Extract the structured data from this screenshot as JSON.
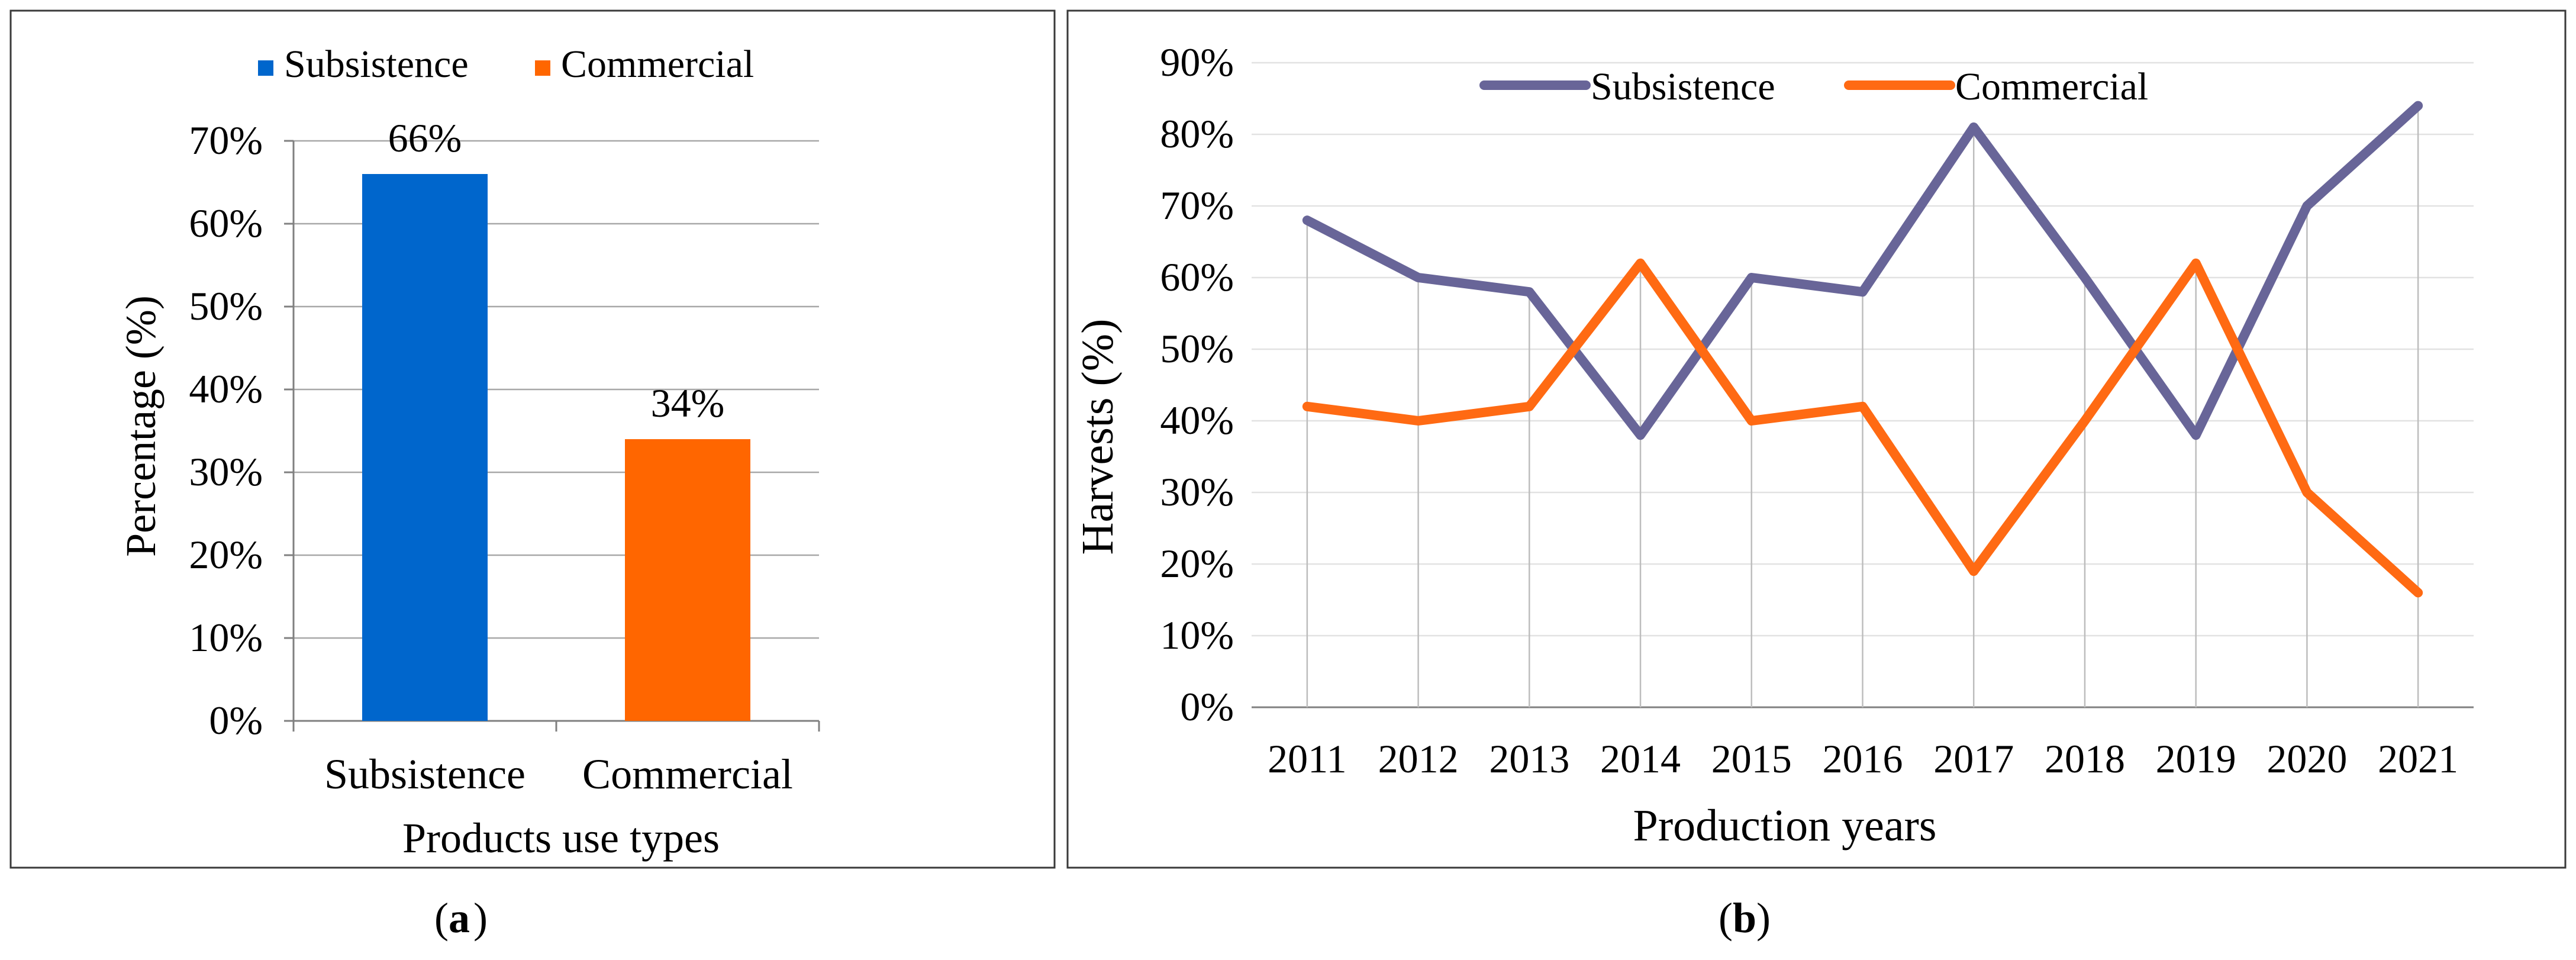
{
  "chart_data": [
    {
      "panel": "a",
      "type": "bar",
      "categories": [
        "Subsistence",
        "Commercial"
      ],
      "values": [
        66,
        34
      ],
      "data_labels": [
        "66%",
        "34%"
      ],
      "colors": [
        "#0066cc",
        "#ff6600"
      ],
      "legend": [
        "Subsistence",
        "Commercial"
      ],
      "legend_position": "top",
      "xlabel": "Products use types",
      "ylabel": "Percentage (%)",
      "ylim": [
        0,
        70
      ],
      "yticks": [
        "0%",
        "10%",
        "20%",
        "30%",
        "40%",
        "50%",
        "60%",
        "70%"
      ],
      "grid": true
    },
    {
      "panel": "b",
      "type": "line",
      "x": [
        "2011",
        "2012",
        "2013",
        "2014",
        "2015",
        "2016",
        "2017",
        "2018",
        "2019",
        "2020",
        "2021"
      ],
      "series": [
        {
          "name": "Subsistence",
          "color": "#686598",
          "values": [
            68,
            60,
            58,
            38,
            60,
            58,
            81,
            60,
            38,
            70,
            84
          ]
        },
        {
          "name": "Commercial",
          "color": "#ff6a13",
          "values": [
            42,
            40,
            42,
            62,
            40,
            42,
            19,
            40,
            62,
            30,
            16
          ]
        }
      ],
      "legend_position": "top",
      "xlabel": "Production years",
      "ylabel": "Harvests (%)",
      "ylim": [
        0,
        90
      ],
      "yticks": [
        "0%",
        "10%",
        "20%",
        "30%",
        "40%",
        "50%",
        "60%",
        "70%",
        "80%",
        "90%"
      ],
      "grid": true
    }
  ],
  "captions": {
    "a": "a",
    "b": "b"
  }
}
